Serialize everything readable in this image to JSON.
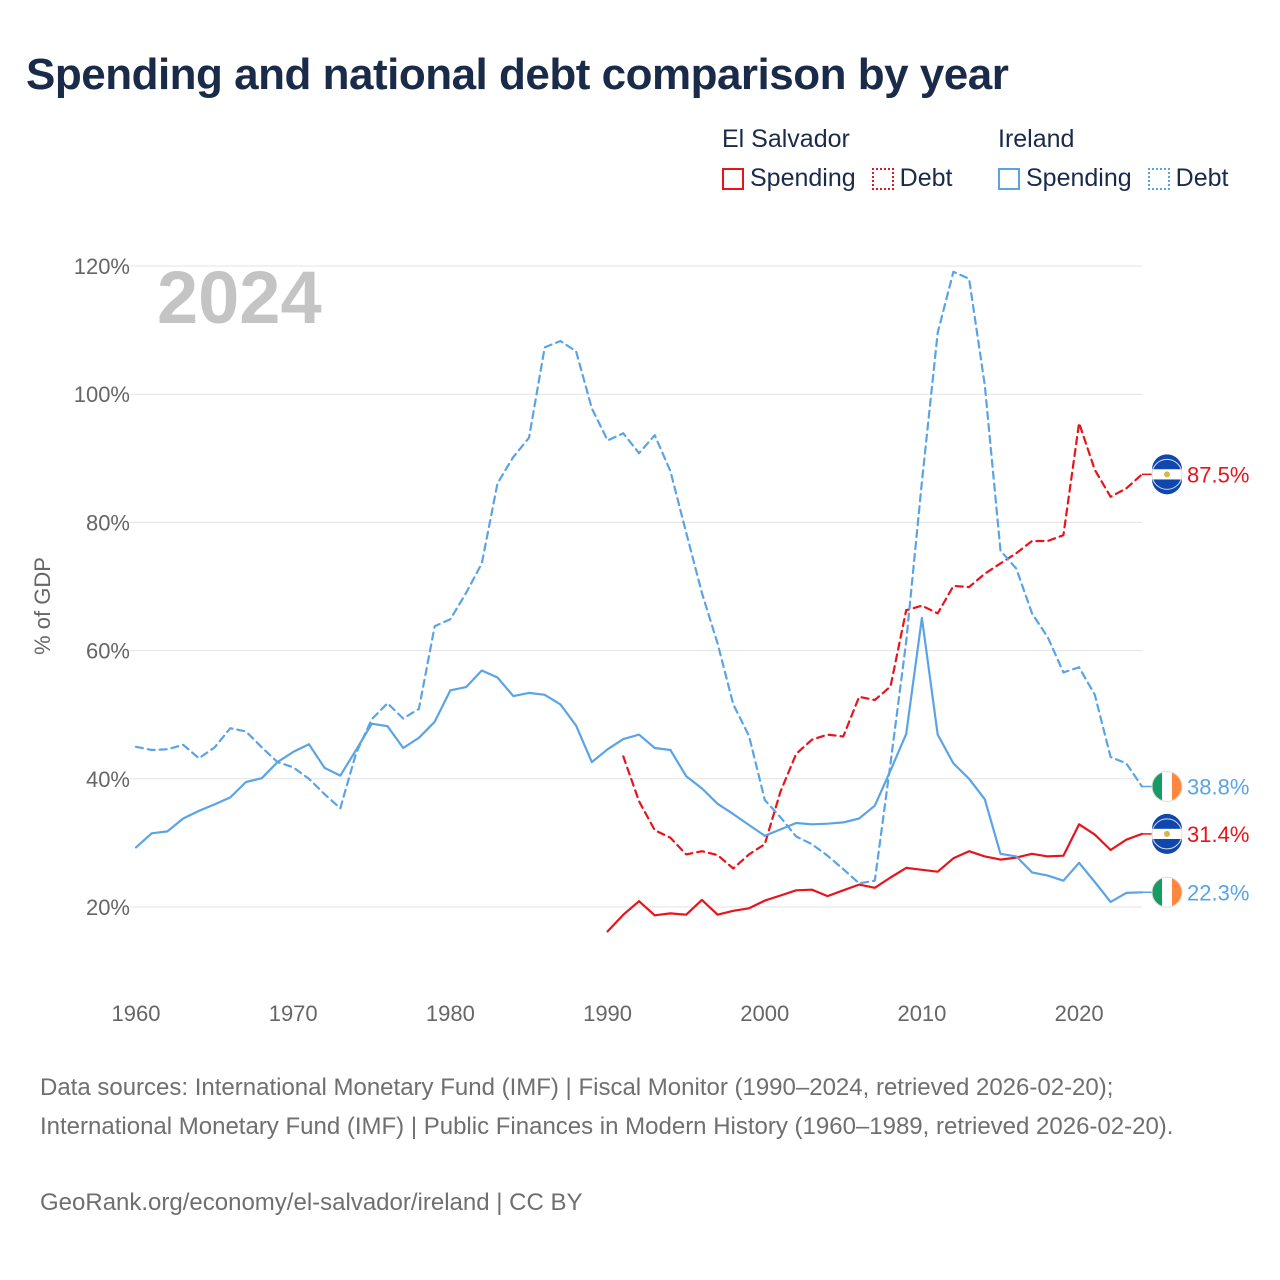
{
  "title": "Spending and national debt comparison by year",
  "legend": {
    "groups": [
      {
        "name": "El Salvador",
        "spending_label": "Spending",
        "debt_label": "Debt",
        "color": "#e8141c"
      },
      {
        "name": "Ireland",
        "spending_label": "Spending",
        "debt_label": "Debt",
        "color": "#5aa4e6"
      }
    ]
  },
  "year_label": "2024",
  "source_text": "Data sources: International Monetary Fund (IMF) | Fiscal Monitor (1990–2024, retrieved 2026-02-20); International Monetary Fund (IMF) | Public Finances in Modern History (1960–1989, retrieved 2026-02-20).",
  "credit_text": "GeoRank.org/economy/el-salvador/ireland | CC BY",
  "chart_data": {
    "type": "line",
    "title": "Spending and national debt comparison by year",
    "xlabel": "",
    "ylabel": "% of GDP",
    "xlim": [
      1960,
      2024
    ],
    "ylim": [
      10,
      120
    ],
    "xticks": [
      1960,
      1970,
      1980,
      1990,
      2000,
      2010,
      2020
    ],
    "yticks": [
      20,
      40,
      60,
      80,
      100,
      120
    ],
    "ytick_labels": [
      "20%",
      "40%",
      "60%",
      "80%",
      "100%",
      "120%"
    ],
    "grid": true,
    "series": [
      {
        "name": "El Salvador Debt",
        "country": "El Salvador",
        "measure": "Debt",
        "color": "#e8141c",
        "dashed": true,
        "flag": "el-salvador",
        "end_label": "87.5%",
        "x": [
          1991,
          1992,
          1993,
          1994,
          1995,
          1996,
          1997,
          1998,
          1999,
          2000,
          2001,
          2002,
          2003,
          2004,
          2005,
          2006,
          2007,
          2008,
          2009,
          2010,
          2011,
          2012,
          2013,
          2014,
          2015,
          2016,
          2017,
          2018,
          2019,
          2020,
          2021,
          2022,
          2023,
          2024
        ],
        "y": [
          43.5,
          36.5,
          32,
          30.8,
          28.2,
          28.7,
          28.1,
          26,
          28.2,
          29.8,
          38,
          43.9,
          46.1,
          46.9,
          46.6,
          52.8,
          52.3,
          54.4,
          66.3,
          67,
          65.8,
          70.1,
          69.9,
          72,
          73.6,
          75.2,
          77.1,
          77.1,
          78,
          95.5,
          88.2,
          84,
          85.3,
          87.5
        ]
      },
      {
        "name": "El Salvador Spending",
        "country": "El Salvador",
        "measure": "Spending",
        "color": "#e8141c",
        "dashed": false,
        "flag": "el-salvador",
        "end_label": "31.4%",
        "x": [
          1990,
          1991,
          1992,
          1993,
          1994,
          1995,
          1996,
          1997,
          1998,
          1999,
          2000,
          2001,
          2002,
          2003,
          2004,
          2005,
          2006,
          2007,
          2008,
          2009,
          2010,
          2011,
          2012,
          2013,
          2014,
          2015,
          2016,
          2017,
          2018,
          2019,
          2020,
          2021,
          2022,
          2023,
          2024
        ],
        "y": [
          16.2,
          18.8,
          20.9,
          18.7,
          19,
          18.8,
          21.1,
          18.8,
          19.4,
          19.8,
          21,
          21.8,
          22.6,
          22.7,
          21.7,
          22.6,
          23.5,
          23,
          24.6,
          26.1,
          25.8,
          25.5,
          27.6,
          28.7,
          27.9,
          27.4,
          27.7,
          28.3,
          27.9,
          28,
          32.9,
          31.3,
          28.9,
          30.5,
          31.4
        ]
      },
      {
        "name": "Ireland Debt",
        "country": "Ireland",
        "measure": "Debt",
        "color": "#5aa4e6",
        "dashed": true,
        "flag": "ireland",
        "end_label": "38.8%",
        "x": [
          1960,
          1961,
          1962,
          1963,
          1964,
          1965,
          1966,
          1967,
          1968,
          1969,
          1970,
          1971,
          1972,
          1973,
          1974,
          1975,
          1976,
          1977,
          1978,
          1979,
          1980,
          1981,
          1982,
          1983,
          1984,
          1985,
          1986,
          1987,
          1988,
          1989,
          1990,
          1991,
          1992,
          1993,
          1994,
          1995,
          1996,
          1997,
          1998,
          1999,
          2000,
          2001,
          2002,
          2003,
          2004,
          2005,
          2006,
          2007,
          2008,
          2009,
          2010,
          2011,
          2012,
          2013,
          2014,
          2015,
          2016,
          2017,
          2018,
          2019,
          2020,
          2021,
          2022,
          2023,
          2024
        ],
        "y": [
          45,
          44.5,
          44.6,
          45.3,
          43.2,
          44.9,
          47.9,
          47.4,
          44.9,
          42.6,
          41.8,
          40,
          37.6,
          35.4,
          44,
          49.3,
          51.8,
          49.4,
          50.9,
          63.8,
          64.9,
          69,
          73.6,
          86.1,
          90.2,
          93.2,
          107.3,
          108.3,
          106.7,
          97.8,
          92.8,
          93.9,
          90.8,
          93.6,
          88,
          78.4,
          69,
          61.1,
          51.6,
          46.7,
          36.7,
          34,
          31,
          29.8,
          28,
          25.9,
          23.7,
          24.1,
          42.4,
          61.4,
          86.3,
          109.6,
          119.1,
          118,
          101.4,
          75.6,
          72.8,
          65.8,
          62.1,
          56.6,
          57.4,
          53.1,
          43.4,
          42.4,
          38.8
        ]
      },
      {
        "name": "Ireland Spending",
        "country": "Ireland",
        "measure": "Spending",
        "color": "#5aa4e6",
        "dashed": false,
        "flag": "ireland",
        "end_label": "22.3%",
        "x": [
          1960,
          1961,
          1962,
          1963,
          1964,
          1965,
          1966,
          1967,
          1968,
          1969,
          1970,
          1971,
          1972,
          1973,
          1974,
          1975,
          1976,
          1977,
          1978,
          1979,
          1980,
          1981,
          1982,
          1983,
          1984,
          1985,
          1986,
          1987,
          1988,
          1989,
          1990,
          1991,
          1992,
          1993,
          1994,
          1995,
          1996,
          1997,
          1998,
          1999,
          2000,
          2001,
          2002,
          2003,
          2004,
          2005,
          2006,
          2007,
          2008,
          2009,
          2010,
          2011,
          2012,
          2013,
          2014,
          2015,
          2016,
          2017,
          2018,
          2019,
          2020,
          2021,
          2022,
          2023,
          2024
        ],
        "y": [
          29.3,
          31.5,
          31.8,
          33.8,
          35,
          36,
          37.1,
          39.5,
          40.1,
          42.6,
          44.2,
          45.4,
          41.7,
          40.5,
          44.5,
          48.6,
          48.2,
          44.8,
          46.4,
          48.9,
          53.8,
          54.3,
          56.9,
          55.8,
          52.9,
          53.4,
          53.1,
          51.6,
          48.3,
          42.6,
          44.6,
          46.2,
          46.9,
          44.8,
          44.5,
          40.4,
          38.5,
          36.1,
          34.5,
          32.8,
          31.1,
          32.1,
          33.1,
          32.9,
          33,
          33.2,
          33.8,
          35.8,
          41.3,
          47,
          65.1,
          46.9,
          42.4,
          40,
          36.8,
          28.3,
          27.9,
          25.4,
          24.9,
          24.1,
          26.9,
          23.9,
          20.8,
          22.2,
          22.3
        ]
      }
    ]
  }
}
